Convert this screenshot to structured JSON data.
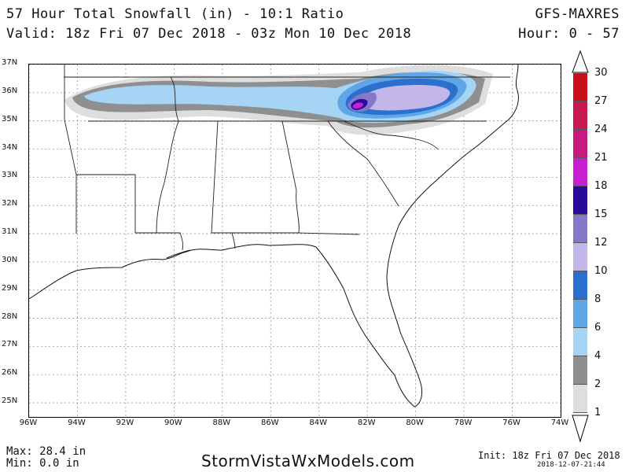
{
  "header": {
    "title_line1": "57 Hour Total Snowfall (in) - 10:1 Ratio",
    "title_line2": "Valid: 18z Fri 07 Dec 2018 - 03z Mon 10 Dec 2018",
    "model": "GFS-MAXRES",
    "hour_range": "Hour: 0 - 57"
  },
  "latitude_labels": [
    "37N",
    "36N",
    "35N",
    "34N",
    "33N",
    "32N",
    "31N",
    "30N",
    "29N",
    "28N",
    "27N",
    "26N",
    "25N"
  ],
  "longitude_labels": [
    "96W",
    "94W",
    "92W",
    "90W",
    "88W",
    "86W",
    "84W",
    "82W",
    "80W",
    "78W",
    "76W",
    "74W"
  ],
  "colorbar": {
    "labels": [
      "30",
      "27",
      "24",
      "21",
      "18",
      "15",
      "12",
      "10",
      "8",
      "6",
      "4",
      "2",
      "1"
    ],
    "colors": [
      "#cc0d1a",
      "#c91850",
      "#c71a7f",
      "#c81fd1",
      "#2a0a9a",
      "#8578c9",
      "#c2b7e8",
      "#2b6fcf",
      "#5ea6e6",
      "#a5d4f4",
      "#8f8f8f",
      "#dedede"
    ]
  },
  "footer": {
    "max": "Max: 28.4 in",
    "min": "Min: 0.0 in",
    "website": "StormVistaWxModels.com",
    "init": "Init: 18z Fri 07 Dec 2018",
    "timestamp": "2018-12-07-21:44"
  }
}
